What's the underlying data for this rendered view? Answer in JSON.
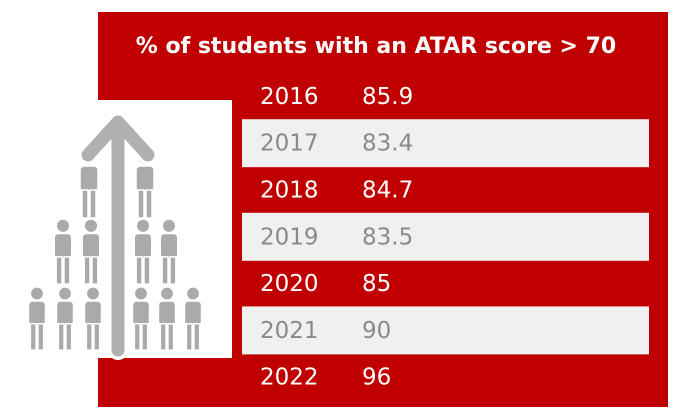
{
  "title": "% of students with an ATAR score > 70",
  "table": {
    "rows": [
      [
        "2016",
        "85.9"
      ],
      [
        "2017",
        "83.4"
      ],
      [
        "2018",
        "84.7"
      ],
      [
        "2019",
        "83.5"
      ],
      [
        "2020",
        "85"
      ],
      [
        "2021",
        "90"
      ],
      [
        "2022",
        "96"
      ]
    ]
  }
}
